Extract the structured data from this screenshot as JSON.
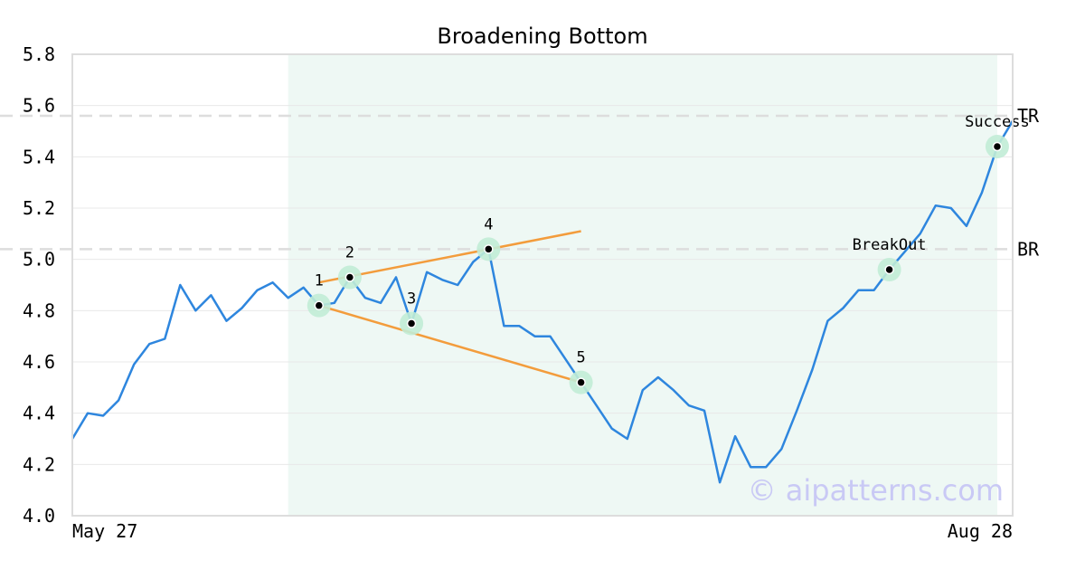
{
  "chart_data": {
    "type": "line",
    "title": "Broadening Bottom",
    "ylim": [
      4.0,
      5.8
    ],
    "yticks": [
      "4.0",
      "4.2",
      "4.4",
      "4.6",
      "4.8",
      "5.0",
      "5.2",
      "5.4",
      "5.6",
      "5.8"
    ],
    "xticks": [
      "May 27",
      "Aug 28"
    ],
    "grid": true,
    "series": [
      {
        "values": [
          4.3,
          4.4,
          4.39,
          4.45,
          4.59,
          4.67,
          4.69,
          4.9,
          4.8,
          4.86,
          4.76,
          4.81,
          4.88,
          4.91,
          4.85,
          4.89,
          4.82,
          4.83,
          4.93,
          4.85,
          4.83,
          4.93,
          4.75,
          4.95,
          4.92,
          4.9,
          4.99,
          5.04,
          4.74,
          4.74,
          4.7,
          4.7,
          4.61,
          4.52,
          4.43,
          4.34,
          4.3,
          4.49,
          4.54,
          4.49,
          4.43,
          4.41,
          4.13,
          4.31,
          4.19,
          4.19,
          4.26,
          4.41,
          4.57,
          4.76,
          4.81,
          4.88,
          4.88,
          4.96,
          5.03,
          5.1,
          5.21,
          5.2,
          5.13,
          5.26,
          5.44,
          5.54
        ]
      }
    ],
    "pattern_region": {
      "start_index": 14,
      "end_index": 60
    },
    "reference_lines": [
      {
        "label": "TR",
        "value": 5.56
      },
      {
        "label": "BR",
        "value": 5.04
      }
    ],
    "trendlines": [
      {
        "from": {
          "index": 16,
          "value": 4.91
        },
        "to": {
          "index": 33,
          "value": 5.11
        }
      },
      {
        "from": {
          "index": 16,
          "value": 4.82
        },
        "to": {
          "index": 33,
          "value": 4.52
        }
      }
    ],
    "points": [
      {
        "label": "1",
        "index": 16,
        "value": 4.82
      },
      {
        "label": "2",
        "index": 18,
        "value": 4.93
      },
      {
        "label": "3",
        "index": 22,
        "value": 4.75
      },
      {
        "label": "4",
        "index": 27,
        "value": 5.04
      },
      {
        "label": "5",
        "index": 33,
        "value": 4.52
      },
      {
        "label": "BreakOut",
        "index": 53,
        "value": 4.96
      },
      {
        "label": "Success",
        "index": 60,
        "value": 5.44
      }
    ],
    "colors": {
      "line": "#2e86de",
      "trendline": "#f39c3c",
      "pattern_region": "#eef8f4",
      "marker_halo": "#c1ecd6",
      "reference_line": "#dddddd",
      "grid": "#e8e8e8",
      "axis": "#dddddd"
    }
  },
  "watermark": "© aipatterns.com"
}
